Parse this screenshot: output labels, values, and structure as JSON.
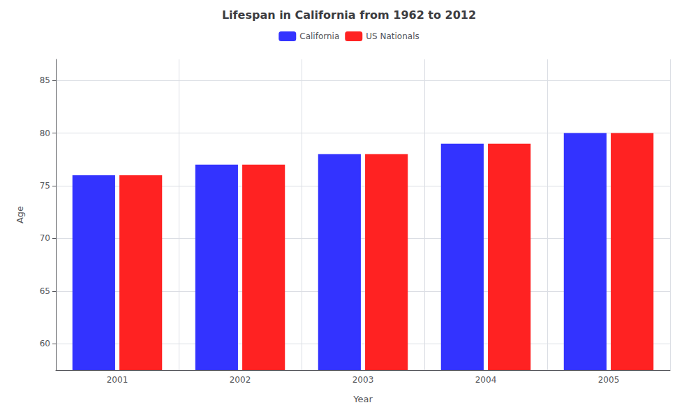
{
  "chart_data": {
    "type": "bar",
    "title": "Lifespan in California from 1962 to 2012",
    "x_label": "Year",
    "y_label": "Age",
    "categories": [
      2001,
      2002,
      2003,
      2004,
      2005
    ],
    "series": [
      {
        "name": "California",
        "color": "#3333ff",
        "values": [
          76.0,
          77.0,
          78.0,
          79.0,
          80.0
        ]
      },
      {
        "name": "US Nationals",
        "color": "#ff2222",
        "values": [
          76.0,
          77.0,
          78.0,
          79.0,
          80.0
        ]
      }
    ],
    "ylim": [
      57.5,
      87
    ],
    "yticks": [
      60,
      65,
      70,
      75,
      80,
      85
    ],
    "grid": true,
    "legend": "top"
  }
}
